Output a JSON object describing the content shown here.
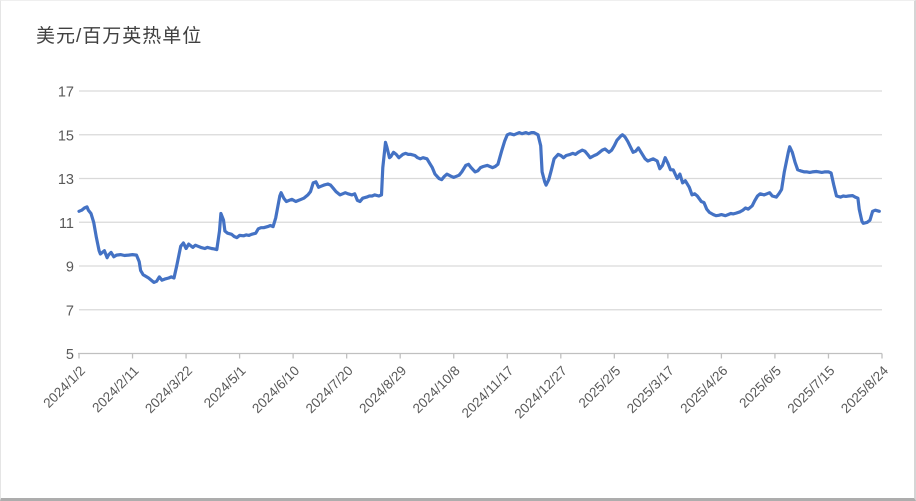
{
  "chart_data": {
    "type": "line",
    "title": "美元/百万英热单位",
    "xlabel": "",
    "ylabel": "",
    "legend": "none",
    "grid": "horizontal",
    "ylim": [
      5,
      17
    ],
    "y_ticks": [
      5,
      7,
      9,
      11,
      13,
      15,
      17
    ],
    "x_total_days": 600,
    "x_tick_days": [
      0,
      40,
      80,
      120,
      160,
      200,
      240,
      280,
      320,
      360,
      400,
      440,
      480,
      520,
      560,
      600
    ],
    "x_tick_labels": [
      "2024/1/2",
      "2024/2/11",
      "2024/3/22",
      "2024/5/1",
      "2024/6/10",
      "2024/7/20",
      "2024/8/29",
      "2024/10/8",
      "2024/11/17",
      "2024/12/27",
      "2025/2/5",
      "2025/3/17",
      "2025/4/26",
      "2025/6/5",
      "2025/7/15",
      "2025/8/24"
    ],
    "line_color": "#4472C4",
    "points": [
      [
        0,
        11.5
      ],
      [
        2,
        11.55
      ],
      [
        4,
        11.65
      ],
      [
        6,
        11.7
      ],
      [
        7,
        11.55
      ],
      [
        9,
        11.4
      ],
      [
        11,
        11.0
      ],
      [
        13,
        10.3
      ],
      [
        15,
        9.7
      ],
      [
        16,
        9.55
      ],
      [
        19,
        9.7
      ],
      [
        21,
        9.38
      ],
      [
        22,
        9.5
      ],
      [
        24,
        9.62
      ],
      [
        26,
        9.42
      ],
      [
        28,
        9.5
      ],
      [
        31,
        9.52
      ],
      [
        34,
        9.48
      ],
      [
        37,
        9.5
      ],
      [
        40,
        9.52
      ],
      [
        43,
        9.5
      ],
      [
        45,
        9.2
      ],
      [
        46,
        8.8
      ],
      [
        48,
        8.6
      ],
      [
        52,
        8.45
      ],
      [
        54,
        8.35
      ],
      [
        56,
        8.25
      ],
      [
        58,
        8.3
      ],
      [
        60,
        8.5
      ],
      [
        62,
        8.35
      ],
      [
        64,
        8.4
      ],
      [
        67,
        8.45
      ],
      [
        69,
        8.5
      ],
      [
        71,
        8.45
      ],
      [
        73,
        9.0
      ],
      [
        76,
        9.9
      ],
      [
        78,
        10.05
      ],
      [
        80,
        9.8
      ],
      [
        82,
        10.0
      ],
      [
        85,
        9.85
      ],
      [
        87,
        9.95
      ],
      [
        89,
        9.9
      ],
      [
        91,
        9.85
      ],
      [
        94,
        9.8
      ],
      [
        96,
        9.85
      ],
      [
        99,
        9.8
      ],
      [
        101,
        9.78
      ],
      [
        103,
        9.75
      ],
      [
        105,
        10.6
      ],
      [
        106,
        11.4
      ],
      [
        108,
        11.1
      ],
      [
        109,
        10.6
      ],
      [
        111,
        10.5
      ],
      [
        114,
        10.45
      ],
      [
        116,
        10.35
      ],
      [
        118,
        10.3
      ],
      [
        120,
        10.4
      ],
      [
        123,
        10.38
      ],
      [
        125,
        10.42
      ],
      [
        127,
        10.4
      ],
      [
        129,
        10.45
      ],
      [
        132,
        10.5
      ],
      [
        134,
        10.7
      ],
      [
        136,
        10.75
      ],
      [
        138,
        10.75
      ],
      [
        141,
        10.8
      ],
      [
        143,
        10.85
      ],
      [
        145,
        10.8
      ],
      [
        147,
        11.2
      ],
      [
        150,
        12.2
      ],
      [
        151,
        12.35
      ],
      [
        153,
        12.1
      ],
      [
        155,
        11.95
      ],
      [
        157,
        12.0
      ],
      [
        159,
        12.05
      ],
      [
        162,
        11.95
      ],
      [
        164,
        12.0
      ],
      [
        166,
        12.05
      ],
      [
        168,
        12.1
      ],
      [
        171,
        12.25
      ],
      [
        173,
        12.4
      ],
      [
        175,
        12.8
      ],
      [
        177,
        12.85
      ],
      [
        179,
        12.6
      ],
      [
        181,
        12.65
      ],
      [
        183,
        12.7
      ],
      [
        186,
        12.75
      ],
      [
        188,
        12.7
      ],
      [
        190,
        12.55
      ],
      [
        192,
        12.4
      ],
      [
        195,
        12.25
      ],
      [
        197,
        12.3
      ],
      [
        199,
        12.35
      ],
      [
        201,
        12.3
      ],
      [
        204,
        12.25
      ],
      [
        206,
        12.3
      ],
      [
        208,
        12.0
      ],
      [
        210,
        11.95
      ],
      [
        212,
        12.1
      ],
      [
        215,
        12.15
      ],
      [
        217,
        12.2
      ],
      [
        219,
        12.2
      ],
      [
        221,
        12.25
      ],
      [
        224,
        12.2
      ],
      [
        226,
        12.25
      ],
      [
        227,
        13.5
      ],
      [
        229,
        14.65
      ],
      [
        230,
        14.45
      ],
      [
        232,
        13.95
      ],
      [
        233,
        14.0
      ],
      [
        235,
        14.2
      ],
      [
        237,
        14.1
      ],
      [
        239,
        13.95
      ],
      [
        242,
        14.1
      ],
      [
        244,
        14.15
      ],
      [
        246,
        14.1
      ],
      [
        248,
        14.1
      ],
      [
        251,
        14.05
      ],
      [
        253,
        13.95
      ],
      [
        255,
        13.9
      ],
      [
        257,
        13.95
      ],
      [
        260,
        13.9
      ],
      [
        262,
        13.7
      ],
      [
        264,
        13.5
      ],
      [
        266,
        13.2
      ],
      [
        269,
        13.0
      ],
      [
        271,
        12.95
      ],
      [
        273,
        13.1
      ],
      [
        275,
        13.2
      ],
      [
        278,
        13.1
      ],
      [
        280,
        13.05
      ],
      [
        282,
        13.1
      ],
      [
        284,
        13.15
      ],
      [
        286,
        13.3
      ],
      [
        289,
        13.6
      ],
      [
        291,
        13.65
      ],
      [
        293,
        13.5
      ],
      [
        296,
        13.3
      ],
      [
        298,
        13.35
      ],
      [
        300,
        13.5
      ],
      [
        302,
        13.55
      ],
      [
        305,
        13.6
      ],
      [
        307,
        13.55
      ],
      [
        309,
        13.5
      ],
      [
        311,
        13.55
      ],
      [
        313,
        13.65
      ],
      [
        316,
        14.3
      ],
      [
        318,
        14.7
      ],
      [
        320,
        15.0
      ],
      [
        322,
        15.05
      ],
      [
        325,
        15.0
      ],
      [
        327,
        15.05
      ],
      [
        329,
        15.1
      ],
      [
        331,
        15.05
      ],
      [
        334,
        15.1
      ],
      [
        336,
        15.05
      ],
      [
        338,
        15.1
      ],
      [
        340,
        15.1
      ],
      [
        343,
        15.0
      ],
      [
        345,
        14.5
      ],
      [
        346,
        13.3
      ],
      [
        348,
        12.85
      ],
      [
        349,
        12.7
      ],
      [
        351,
        12.95
      ],
      [
        353,
        13.4
      ],
      [
        355,
        13.9
      ],
      [
        358,
        14.1
      ],
      [
        360,
        14.05
      ],
      [
        362,
        13.95
      ],
      [
        364,
        14.05
      ],
      [
        367,
        14.1
      ],
      [
        369,
        14.15
      ],
      [
        371,
        14.1
      ],
      [
        373,
        14.2
      ],
      [
        376,
        14.3
      ],
      [
        378,
        14.25
      ],
      [
        380,
        14.1
      ],
      [
        382,
        13.95
      ],
      [
        385,
        14.05
      ],
      [
        387,
        14.1
      ],
      [
        389,
        14.2
      ],
      [
        391,
        14.3
      ],
      [
        393,
        14.35
      ],
      [
        396,
        14.2
      ],
      [
        398,
        14.3
      ],
      [
        400,
        14.5
      ],
      [
        402,
        14.75
      ],
      [
        405,
        14.95
      ],
      [
        406,
        15.0
      ],
      [
        408,
        14.9
      ],
      [
        410,
        14.7
      ],
      [
        412,
        14.45
      ],
      [
        414,
        14.2
      ],
      [
        416,
        14.25
      ],
      [
        418,
        14.4
      ],
      [
        420,
        14.2
      ],
      [
        423,
        13.9
      ],
      [
        425,
        13.8
      ],
      [
        427,
        13.85
      ],
      [
        429,
        13.9
      ],
      [
        432,
        13.8
      ],
      [
        434,
        13.45
      ],
      [
        436,
        13.6
      ],
      [
        438,
        13.95
      ],
      [
        440,
        13.7
      ],
      [
        442,
        13.4
      ],
      [
        444,
        13.4
      ],
      [
        447,
        13.0
      ],
      [
        449,
        13.2
      ],
      [
        451,
        12.8
      ],
      [
        453,
        12.9
      ],
      [
        456,
        12.6
      ],
      [
        458,
        12.25
      ],
      [
        460,
        12.3
      ],
      [
        462,
        12.2
      ],
      [
        465,
        11.95
      ],
      [
        467,
        11.9
      ],
      [
        469,
        11.6
      ],
      [
        471,
        11.45
      ],
      [
        474,
        11.35
      ],
      [
        476,
        11.3
      ],
      [
        478,
        11.32
      ],
      [
        480,
        11.35
      ],
      [
        483,
        11.3
      ],
      [
        485,
        11.35
      ],
      [
        487,
        11.4
      ],
      [
        489,
        11.38
      ],
      [
        491,
        11.42
      ],
      [
        494,
        11.48
      ],
      [
        496,
        11.55
      ],
      [
        498,
        11.65
      ],
      [
        500,
        11.6
      ],
      [
        503,
        11.75
      ],
      [
        505,
        12.0
      ],
      [
        507,
        12.2
      ],
      [
        509,
        12.3
      ],
      [
        512,
        12.25
      ],
      [
        514,
        12.3
      ],
      [
        516,
        12.35
      ],
      [
        518,
        12.2
      ],
      [
        521,
        12.15
      ],
      [
        523,
        12.3
      ],
      [
        525,
        12.5
      ],
      [
        527,
        13.3
      ],
      [
        530,
        14.2
      ],
      [
        531,
        14.45
      ],
      [
        533,
        14.2
      ],
      [
        535,
        13.75
      ],
      [
        537,
        13.4
      ],
      [
        539,
        13.35
      ],
      [
        542,
        13.3
      ],
      [
        544,
        13.3
      ],
      [
        546,
        13.28
      ],
      [
        548,
        13.3
      ],
      [
        551,
        13.32
      ],
      [
        553,
        13.3
      ],
      [
        555,
        13.28
      ],
      [
        557,
        13.3
      ],
      [
        560,
        13.3
      ],
      [
        562,
        13.25
      ],
      [
        564,
        12.7
      ],
      [
        566,
        12.2
      ],
      [
        569,
        12.15
      ],
      [
        571,
        12.2
      ],
      [
        573,
        12.18
      ],
      [
        575,
        12.2
      ],
      [
        578,
        12.22
      ],
      [
        580,
        12.15
      ],
      [
        582,
        12.1
      ],
      [
        583,
        11.6
      ],
      [
        585,
        11.05
      ],
      [
        586,
        10.95
      ],
      [
        589,
        11.0
      ],
      [
        591,
        11.1
      ],
      [
        593,
        11.5
      ],
      [
        595,
        11.55
      ],
      [
        598,
        11.5
      ]
    ]
  },
  "colors": {
    "grid": "#d9d9d9",
    "axis": "#c0c0c0",
    "tick_label": "#595959",
    "title": "#404040",
    "line": "#4472C4"
  }
}
